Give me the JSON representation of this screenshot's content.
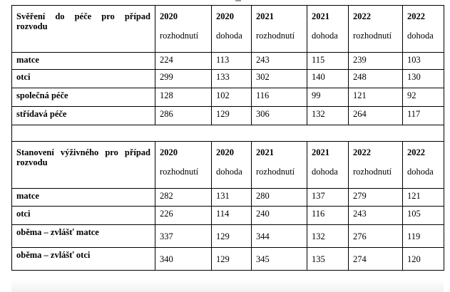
{
  "tables": [
    {
      "title": "Svěření do péče pro případ rozvodu",
      "columns": [
        {
          "year": "2020",
          "kind": "rozhodnutí"
        },
        {
          "year": "2020",
          "kind": "dohoda"
        },
        {
          "year": "2021",
          "kind": "rozhodnutí"
        },
        {
          "year": "2021",
          "kind": "dohoda"
        },
        {
          "year": "2022",
          "kind": "rozhodnutí"
        },
        {
          "year": "2022",
          "kind": "dohoda"
        }
      ],
      "rows": [
        {
          "label": "matce",
          "values": [
            "224",
            "113",
            "243",
            "115",
            "239",
            "103"
          ]
        },
        {
          "label": "otci",
          "values": [
            "299",
            "133",
            "302",
            "140",
            "248",
            "130"
          ]
        },
        {
          "label": "společná péče",
          "values": [
            "128",
            "102",
            "116",
            "99",
            "121",
            "92"
          ]
        },
        {
          "label": "střídavá péče",
          "values": [
            "286",
            "129",
            "306",
            "132",
            "264",
            "117"
          ]
        }
      ]
    },
    {
      "title": "Stanovení výživného pro případ rozvodu",
      "columns": [
        {
          "year": "2020",
          "kind": "rozhodnutí"
        },
        {
          "year": "2020",
          "kind": "dohoda"
        },
        {
          "year": "2021",
          "kind": "rozhodnutí"
        },
        {
          "year": "2021",
          "kind": "dohoda"
        },
        {
          "year": "2022",
          "kind": "rozhodnutí"
        },
        {
          "year": "2022",
          "kind": "dohoda"
        }
      ],
      "rows": [
        {
          "label": "matce",
          "values": [
            "282",
            "131",
            "280",
            "137",
            "279",
            "121"
          ]
        },
        {
          "label": "otci",
          "values": [
            "226",
            "114",
            "240",
            "116",
            "243",
            "105"
          ]
        },
        {
          "label": "oběma – zvlášť matce",
          "values": [
            "337",
            "129",
            "344",
            "132",
            "276",
            "119"
          ]
        },
        {
          "label": "oběma – zvlášť otci",
          "values": [
            "340",
            "129",
            "345",
            "135",
            "274",
            "120"
          ]
        }
      ]
    }
  ]
}
